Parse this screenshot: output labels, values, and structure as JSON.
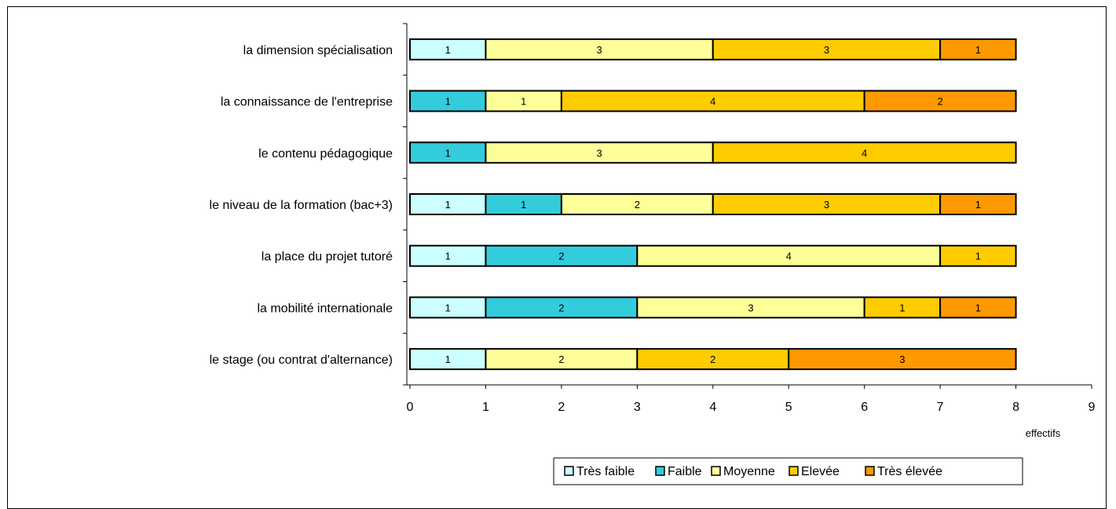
{
  "chart_data": {
    "type": "bar",
    "orientation": "horizontal",
    "stacked": true,
    "categories": [
      "la dimension spécialisation",
      "la connaissance de l'entreprise",
      "le contenu pédagogique",
      "le niveau de la formation (bac+3)",
      "la place du projet tutoré",
      "la mobilité internationale",
      "le stage (ou contrat d'alternance)"
    ],
    "series": [
      {
        "name": "Très faible",
        "color": "#ccffff",
        "values": [
          1,
          0,
          0,
          1,
          1,
          1,
          1
        ]
      },
      {
        "name": "Faible",
        "color": "#33ccdd",
        "values": [
          0,
          1,
          1,
          1,
          2,
          2,
          0
        ]
      },
      {
        "name": "Moyenne",
        "color": "#ffff99",
        "values": [
          3,
          1,
          3,
          2,
          4,
          3,
          2
        ]
      },
      {
        "name": "Elevée",
        "color": "#ffcc00",
        "values": [
          3,
          4,
          4,
          3,
          1,
          1,
          2
        ]
      },
      {
        "name": "Très élevée",
        "color": "#ff9900",
        "values": [
          1,
          2,
          0,
          1,
          0,
          1,
          3
        ]
      }
    ],
    "xlim": [
      0,
      9
    ],
    "xticks": [
      "0",
      "1",
      "2",
      "3",
      "4",
      "5",
      "6",
      "7",
      "8",
      "9"
    ],
    "xlabel": "effectifs",
    "legend_position": "bottom-right",
    "grid": false
  }
}
